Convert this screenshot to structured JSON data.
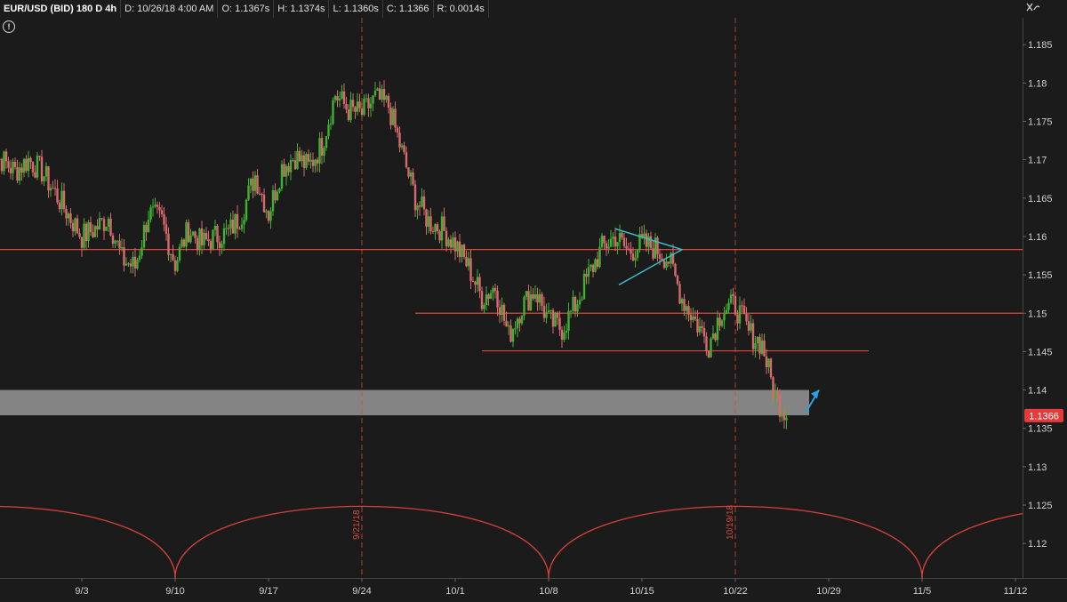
{
  "infobar": {
    "symbol": "EUR/USD (BID) 180 D 4h",
    "date": "D: 10/26/18 4:00 AM",
    "open": "O: 1.1367s",
    "high": "H: 1.1374s",
    "low": "L: 1.1360s",
    "close": "C: 1.1366",
    "range": "R: 0.0014s"
  },
  "icons": {
    "tools": "crosshair-settings-icon",
    "alert": "alert-icon",
    "alert_glyph": "!"
  },
  "colors": {
    "background": "#1b1b1b",
    "up": "#3fb230",
    "down": "#d9696c",
    "level_line": "#d9483d",
    "cycle_arc": "#d8413b",
    "triangle": "#33c6d0",
    "arrow": "#2aa0e8",
    "support_zone": "#8a8a8a",
    "price_tag": "#e53b3b"
  },
  "chart_data": {
    "type": "candlestick",
    "title": "EUR/USD (BID) 180 D 4h",
    "y_ticks": [
      "1.185",
      "1.18",
      "1.175",
      "1.17",
      "1.165",
      "1.16",
      "1.155",
      "1.15",
      "1.145",
      "1.14",
      "1.135",
      "1.13",
      "1.125",
      "1.12"
    ],
    "x_ticks": [
      "9/3",
      "9/10",
      "9/17",
      "9/24",
      "10/1",
      "10/8",
      "10/15",
      "10/22",
      "10/29",
      "11/5",
      "11/12"
    ],
    "ylim": [
      1.1155,
      1.1885
    ],
    "last_price": "1.1366",
    "last_price_value": 1.1366,
    "horizontal_levels": [
      1.1583,
      1.15,
      1.1451
    ],
    "support_zone": [
      1.1367,
      1.14
    ],
    "vertical_markers": [
      {
        "date": "9/24",
        "label": "9/21/18"
      },
      {
        "date": "10/22",
        "label": "10/19/18"
      }
    ],
    "cycle_period_weeks": 4,
    "triangle": {
      "apex_date": "10/18",
      "apex_price": 1.1583,
      "top_price": 1.161,
      "bottom_price": 1.1537
    },
    "arrow_target": {
      "date": "10/28",
      "price": 1.14
    },
    "price_path": [
      [
        "8/27",
        1.1705
      ],
      [
        "8/28",
        1.17
      ],
      [
        "8/29",
        1.1685
      ],
      [
        "8/30",
        1.17
      ],
      [
        "8/31",
        1.1685
      ],
      [
        "9/3",
        1.16
      ],
      [
        "9/4",
        1.161
      ],
      [
        "9/5",
        1.1625
      ],
      [
        "9/6",
        1.157
      ],
      [
        "9/7",
        1.156
      ],
      [
        "9/8",
        1.163
      ],
      [
        "9/9",
        1.162
      ],
      [
        "9/10",
        1.1565
      ],
      [
        "9/11",
        1.161
      ],
      [
        "9/12",
        1.159
      ],
      [
        "9/13",
        1.16
      ],
      [
        "9/14",
        1.1605
      ],
      [
        "9/15",
        1.163
      ],
      [
        "9/16",
        1.168
      ],
      [
        "9/17",
        1.163
      ],
      [
        "9/18",
        1.169
      ],
      [
        "9/19",
        1.1705
      ],
      [
        "9/20",
        1.169
      ],
      [
        "9/21",
        1.172
      ],
      [
        "9/22",
        1.1785
      ],
      [
        "9/23",
        1.1765
      ],
      [
        "9/24",
        1.176
      ],
      [
        "9/25",
        1.178
      ],
      [
        "9/26",
        1.177
      ],
      [
        "9/27",
        1.171
      ],
      [
        "9/28",
        1.165
      ],
      [
        "9/29",
        1.162
      ],
      [
        "9/30",
        1.161
      ],
      [
        "10/1",
        1.159
      ],
      [
        "10/2",
        1.156
      ],
      [
        "10/3",
        1.152
      ],
      [
        "10/4",
        1.1535
      ],
      [
        "10/5",
        1.147
      ],
      [
        "10/6",
        1.151
      ],
      [
        "10/7",
        1.153
      ],
      [
        "10/8",
        1.149
      ],
      [
        "10/9",
        1.148
      ],
      [
        "10/10",
        1.151
      ],
      [
        "10/11",
        1.155
      ],
      [
        "10/12",
        1.1585
      ],
      [
        "10/13",
        1.16
      ],
      [
        "10/14",
        1.158
      ],
      [
        "10/15",
        1.159
      ],
      [
        "10/16",
        1.1585
      ],
      [
        "10/17",
        1.157
      ],
      [
        "10/18",
        1.152
      ],
      [
        "10/19",
        1.149
      ],
      [
        "10/20",
        1.146
      ],
      [
        "10/21",
        1.1505
      ],
      [
        "10/22",
        1.151
      ],
      [
        "10/23",
        1.1475
      ],
      [
        "10/24",
        1.146
      ],
      [
        "10/25",
        1.139
      ],
      [
        "10/26",
        1.1366
      ]
    ]
  }
}
